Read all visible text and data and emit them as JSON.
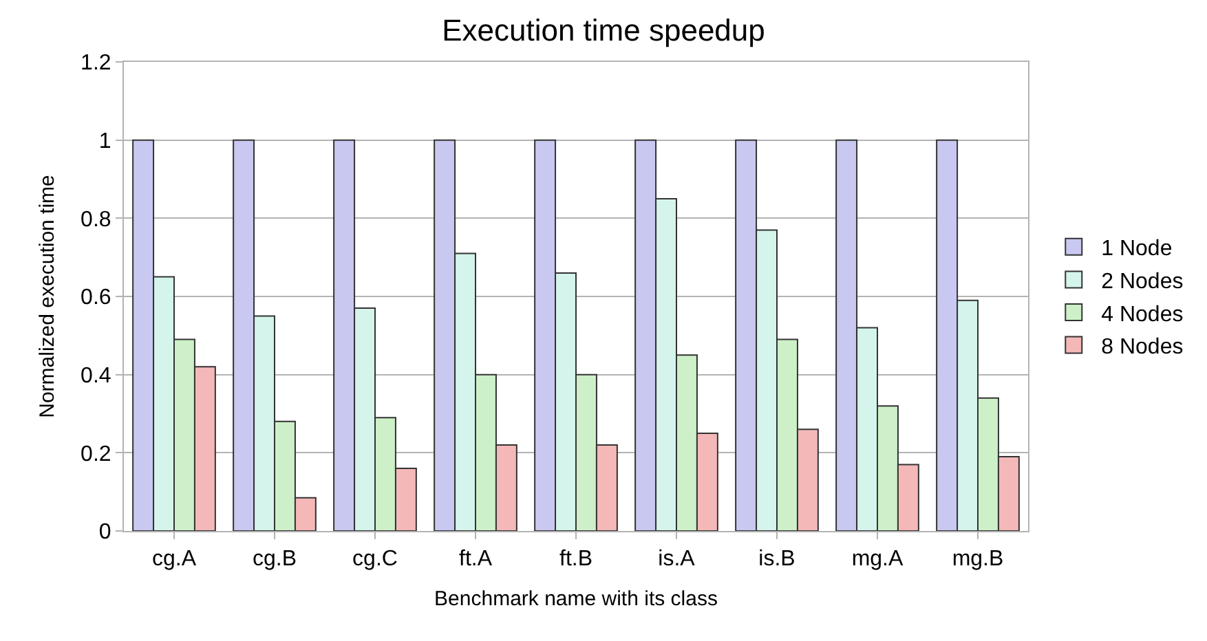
{
  "chart_data": {
    "type": "bar",
    "title": "Execution time speedup",
    "xlabel": "Benchmark name with its class",
    "ylabel": "Normalized execution time",
    "categories": [
      "cg.A",
      "cg.B",
      "cg.C",
      "ft.A",
      "ft.B",
      "is.A",
      "is.B",
      "mg.A",
      "mg.B"
    ],
    "series": [
      {
        "name": "1 Node",
        "color": "#c8c8f0",
        "values": [
          1,
          1,
          1,
          1,
          1,
          1,
          1,
          1,
          1
        ]
      },
      {
        "name": "2 Nodes",
        "color": "#d4f4ec",
        "values": [
          0.65,
          0.55,
          0.57,
          0.71,
          0.66,
          0.85,
          0.77,
          0.52,
          0.59
        ]
      },
      {
        "name": "4 Nodes",
        "color": "#cdf0c8",
        "values": [
          0.49,
          0.28,
          0.29,
          0.4,
          0.4,
          0.45,
          0.49,
          0.32,
          0.34
        ]
      },
      {
        "name": "8 Nodes",
        "color": "#f4b8b8",
        "values": [
          0.42,
          0.085,
          0.16,
          0.22,
          0.22,
          0.25,
          0.26,
          0.17,
          0.19
        ]
      }
    ],
    "ylim": [
      0,
      1.2
    ],
    "yticks": [
      0,
      0.2,
      0.4,
      0.6,
      0.8,
      1,
      1.2
    ],
    "grid": "y",
    "legend": "right"
  }
}
